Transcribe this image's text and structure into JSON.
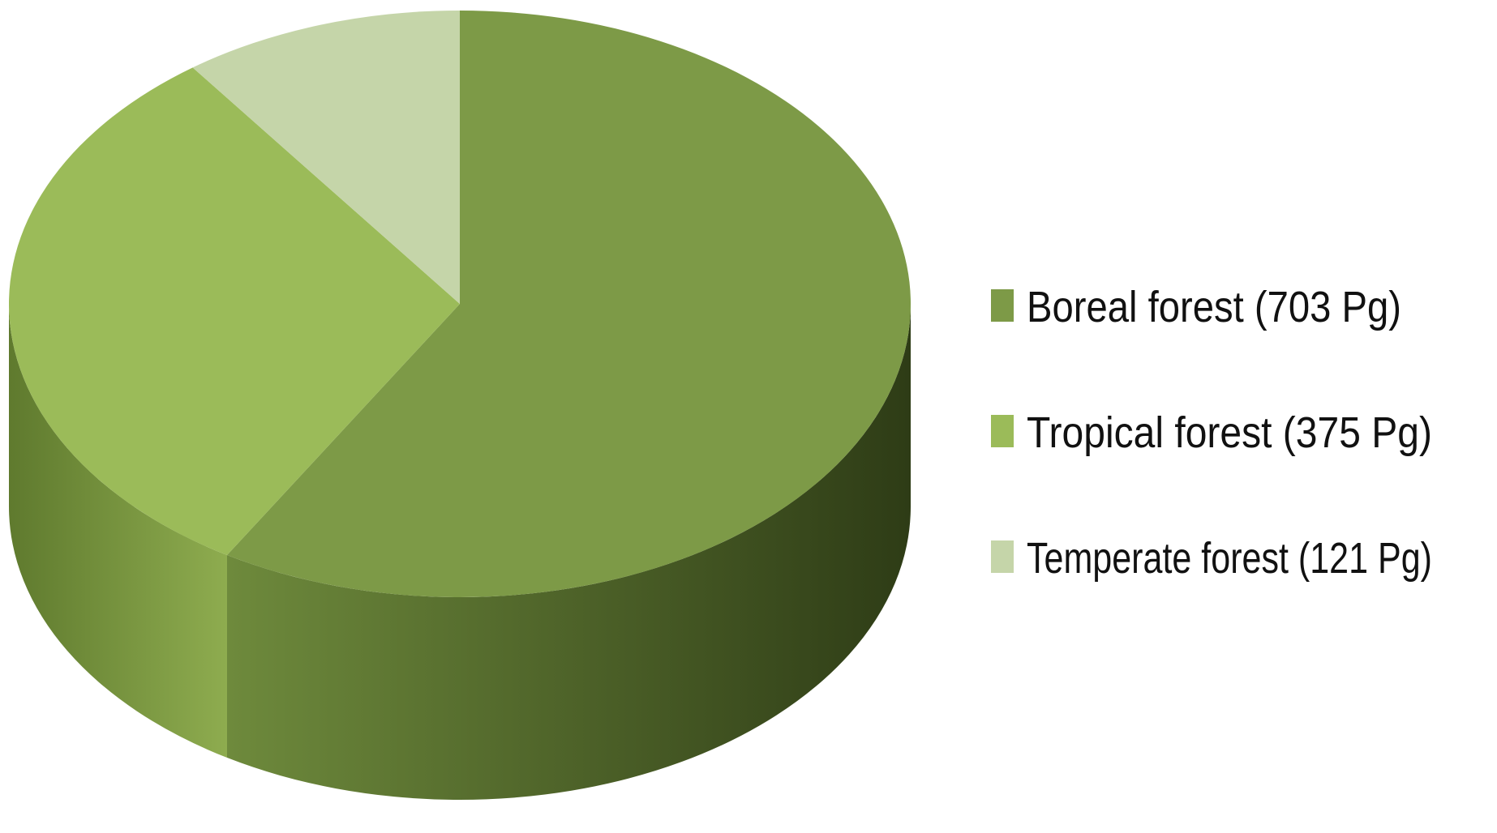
{
  "chart_data": {
    "type": "pie",
    "style": "3d",
    "title": "",
    "legend_position": "right",
    "slices": [
      {
        "label": "Boreal forest (703 Pg)",
        "value": 703,
        "color": "#7d9a47",
        "side_light": "#6e8a3c",
        "side_dark": "#2e3c16"
      },
      {
        "label": "Tropical forest (375 Pg)",
        "value": 375,
        "color": "#9bbb59",
        "side_light": "#8eac4f",
        "side_dark": "#5f7a2e"
      },
      {
        "label": "Temperate forest (121 Pg)",
        "value": 121,
        "color": "#c5d5a9",
        "side_light": "#b8c99a",
        "side_dark": "#8fa070"
      }
    ]
  }
}
